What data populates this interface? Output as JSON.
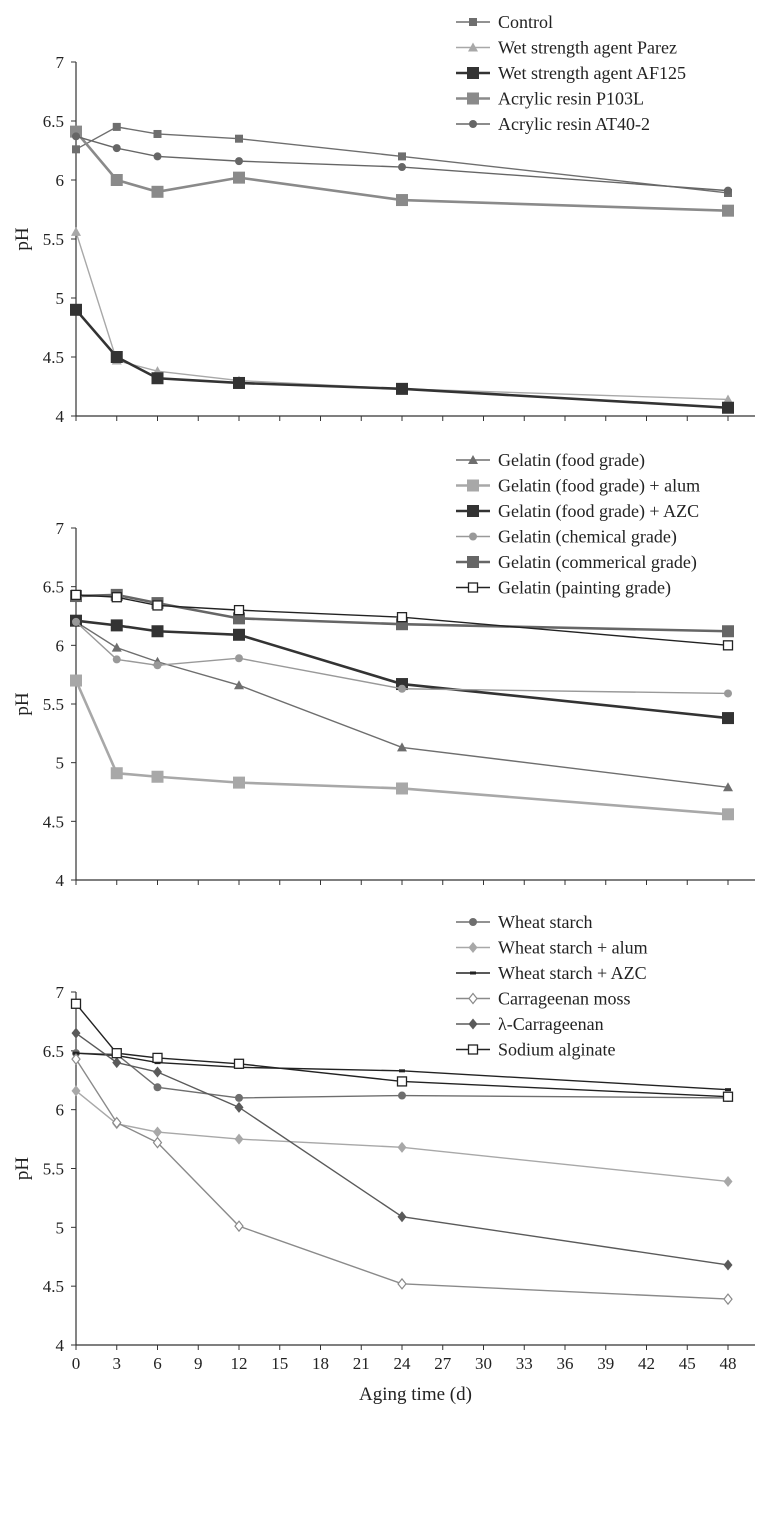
{
  "chart_data": [
    {
      "type": "line",
      "ylabel": "pH",
      "ylim": [
        4,
        7
      ],
      "yticks": [
        "4",
        "4.5",
        "5",
        "5.5",
        "6",
        "6.5",
        "7"
      ],
      "x_ticks_shown": false,
      "legend_position": "top-right",
      "series": [
        {
          "name": "Control",
          "color": "#6e6e6e",
          "marker": "square-small",
          "x": [
            0,
            3,
            6,
            12,
            24,
            48
          ],
          "y": [
            6.26,
            6.45,
            6.39,
            6.35,
            6.2,
            5.89
          ]
        },
        {
          "name": "Wet strength agent Parez",
          "color": "#a8a8a8",
          "marker": "triangle",
          "x": [
            0,
            3,
            6,
            12,
            24,
            48
          ],
          "y": [
            5.56,
            4.47,
            4.38,
            4.3,
            4.23,
            4.14
          ]
        },
        {
          "name": "Wet strength agent AF125",
          "color": "#333333",
          "marker": "square-large",
          "x": [
            0,
            3,
            6,
            12,
            24,
            48
          ],
          "y": [
            4.9,
            4.5,
            4.32,
            4.28,
            4.23,
            4.07
          ]
        },
        {
          "name": "Acrylic resin P103L",
          "color": "#8a8a8a",
          "marker": "square-large",
          "x": [
            0,
            3,
            6,
            12,
            24,
            48
          ],
          "y": [
            6.41,
            6.0,
            5.9,
            6.02,
            5.83,
            5.74
          ]
        },
        {
          "name": "Acrylic resin AT40-2",
          "color": "#666666",
          "marker": "circle",
          "x": [
            0,
            3,
            6,
            12,
            24,
            48
          ],
          "y": [
            6.37,
            6.27,
            6.2,
            6.16,
            6.11,
            5.91
          ]
        }
      ]
    },
    {
      "type": "line",
      "ylabel": "pH",
      "ylim": [
        4,
        7
      ],
      "yticks": [
        "4",
        "4.5",
        "5",
        "5.5",
        "6",
        "6.5",
        "7"
      ],
      "x_ticks_shown": false,
      "legend_position": "top-right",
      "series": [
        {
          "name": "Gelatin (food grade)",
          "color": "#6e6e6e",
          "marker": "triangle",
          "x": [
            0,
            3,
            6,
            12,
            24,
            48
          ],
          "y": [
            6.2,
            5.98,
            5.86,
            5.66,
            5.13,
            4.79
          ]
        },
        {
          "name": "Gelatin (food grade) + alum",
          "color": "#a8a8a8",
          "marker": "square-large",
          "x": [
            0,
            3,
            6,
            12,
            24,
            48
          ],
          "y": [
            5.7,
            4.91,
            4.88,
            4.83,
            4.78,
            4.56
          ]
        },
        {
          "name": "Gelatin (food grade) + AZC",
          "color": "#333333",
          "marker": "square-large",
          "x": [
            0,
            3,
            6,
            12,
            24,
            48
          ],
          "y": [
            6.21,
            6.17,
            6.12,
            6.09,
            5.67,
            5.38
          ]
        },
        {
          "name": "Gelatin (chemical grade)",
          "color": "#999999",
          "marker": "circle",
          "x": [
            0,
            3,
            6,
            12,
            24,
            48
          ],
          "y": [
            6.2,
            5.88,
            5.83,
            5.89,
            5.63,
            5.59
          ]
        },
        {
          "name": "Gelatin (commerical grade)",
          "color": "#666666",
          "marker": "square-large",
          "x": [
            0,
            3,
            6,
            12,
            24,
            48
          ],
          "y": [
            6.42,
            6.43,
            6.36,
            6.23,
            6.18,
            6.12
          ]
        },
        {
          "name": "Gelatin (painting grade)",
          "color": "#222222",
          "marker": "square-open",
          "x": [
            0,
            3,
            6,
            12,
            24,
            48
          ],
          "y": [
            6.43,
            6.41,
            6.34,
            6.3,
            6.24,
            6.0
          ]
        }
      ]
    },
    {
      "type": "line",
      "xlabel": "Aging time (d)",
      "ylabel": "pH",
      "ylim": [
        4,
        7
      ],
      "yticks": [
        "4",
        "4.5",
        "5",
        "5.5",
        "6",
        "6.5",
        "7"
      ],
      "xticks": [
        "0",
        "3",
        "6",
        "9",
        "12",
        "15",
        "18",
        "21",
        "24",
        "27",
        "30",
        "33",
        "36",
        "39",
        "42",
        "45",
        "48"
      ],
      "legend_position": "top-right",
      "series": [
        {
          "name": "Wheat starch",
          "color": "#6e6e6e",
          "marker": "circle",
          "x": [
            0,
            3,
            6,
            12,
            24,
            48
          ],
          "y": [
            6.48,
            6.47,
            6.19,
            6.1,
            6.12,
            6.1
          ]
        },
        {
          "name": "Wheat starch + alum",
          "color": "#a8a8a8",
          "marker": "diamond",
          "x": [
            0,
            3,
            6,
            12,
            24,
            48
          ],
          "y": [
            6.16,
            5.88,
            5.81,
            5.75,
            5.68,
            5.39
          ]
        },
        {
          "name": "Wheat starch + AZC",
          "color": "#222222",
          "marker": "dash",
          "x": [
            0,
            3,
            6,
            12,
            24,
            48
          ],
          "y": [
            6.48,
            6.46,
            6.4,
            6.36,
            6.33,
            6.17
          ]
        },
        {
          "name": "Carrageenan moss",
          "color": "#8a8a8a",
          "marker": "diamond-open",
          "x": [
            0,
            3,
            6,
            12,
            24,
            48
          ],
          "y": [
            6.43,
            5.89,
            5.72,
            5.01,
            4.52,
            4.39
          ]
        },
        {
          "name": "λ-Carrageenan",
          "color": "#5a5a5a",
          "marker": "diamond",
          "x": [
            0,
            3,
            6,
            12,
            24,
            48
          ],
          "y": [
            6.65,
            6.4,
            6.32,
            6.02,
            5.09,
            4.68
          ]
        },
        {
          "name": "Sodium alginate",
          "color": "#222222",
          "marker": "square-open",
          "x": [
            0,
            3,
            6,
            12,
            24,
            48
          ],
          "y": [
            6.9,
            6.48,
            6.44,
            6.39,
            6.24,
            6.11
          ]
        }
      ]
    }
  ]
}
